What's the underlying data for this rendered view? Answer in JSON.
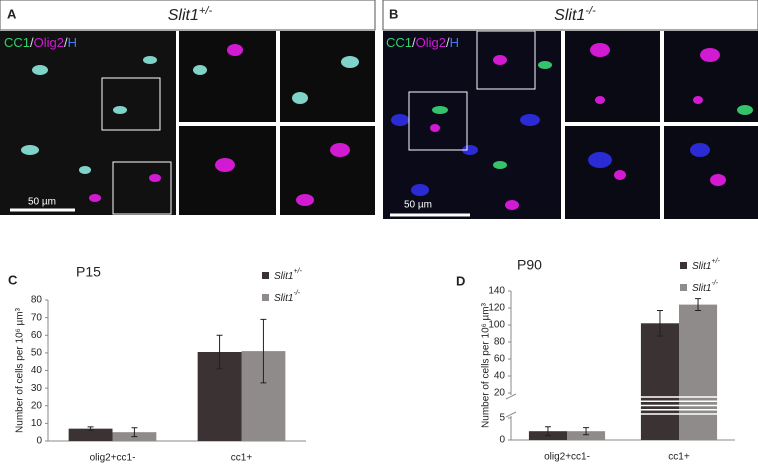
{
  "panels": [
    {
      "label": "A",
      "title": "Slit1+/-",
      "stain": "CC1/Olig2/H",
      "scale_bar": "50 µm"
    },
    {
      "label": "B",
      "title": "Slit1-/-",
      "stain": "CC1/Olig2/H",
      "scale_bar": "50 µm"
    }
  ],
  "chart_data": [
    {
      "type": "bar",
      "panel": "C",
      "title": "P15",
      "y_label": "Number of cells per 10⁶ µm³",
      "categories": [
        "olig2+cc1-",
        "cc1+"
      ],
      "series": [
        {
          "name": "Slit1+/-",
          "color": "#3a3233",
          "values": [
            7,
            50.5
          ],
          "errors": [
            1,
            9.5
          ]
        },
        {
          "name": "Slit1-/-",
          "color": "#8f8b8b",
          "values": [
            5,
            51
          ],
          "errors": [
            2.5,
            18
          ]
        }
      ],
      "ylim": [
        0,
        80
      ],
      "yticks": [
        0,
        10,
        20,
        30,
        40,
        50,
        60,
        70,
        80
      ]
    },
    {
      "type": "bar",
      "panel": "D",
      "title": "P90",
      "y_label": "Number of cells per 10⁶ µm³",
      "categories": [
        "olig2+cc1-",
        "cc1+"
      ],
      "series": [
        {
          "name": "Slit1+/-",
          "color": "#3a3233",
          "values": [
            2,
            102
          ],
          "errors": [
            1,
            15
          ]
        },
        {
          "name": "Slit1-/-",
          "color": "#8f8b8b",
          "values": [
            2,
            124
          ],
          "errors": [
            0.8,
            7
          ]
        }
      ],
      "ylim": [
        0,
        140
      ],
      "y_break": [
        5,
        20
      ],
      "yticks": [
        0,
        5,
        20,
        40,
        60,
        80,
        100,
        120,
        140
      ]
    }
  ]
}
